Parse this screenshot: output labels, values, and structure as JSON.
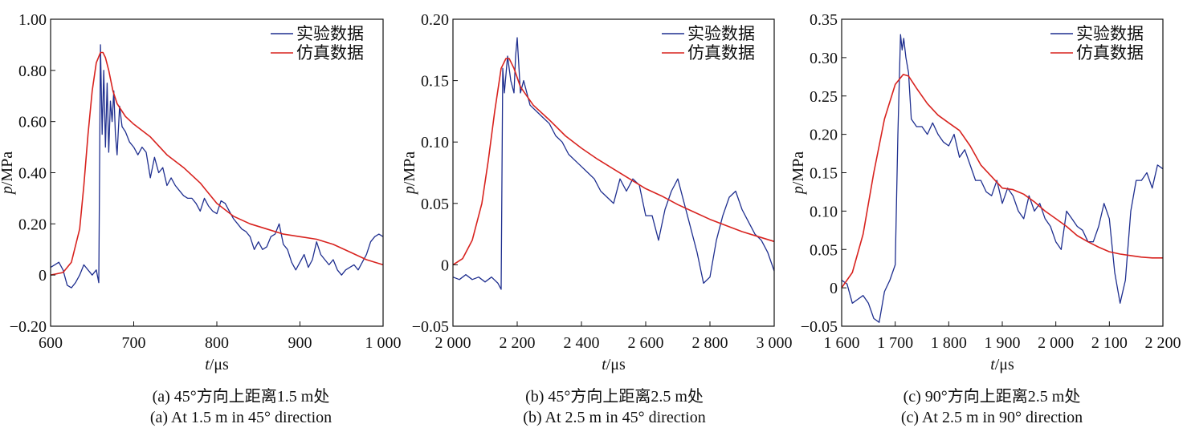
{
  "colors": {
    "experimental": "#1f2f8f",
    "simulated": "#d8231f",
    "axis": "#111111"
  },
  "chart_data": [
    {
      "type": "line",
      "caption_cn": "(a) 45°方向上距离1.5 m处",
      "caption_en": "(a) At 1.5 m in 45° direction",
      "xlabel_italic": "t",
      "xlabel_unit": "/μs",
      "ylabel_italic": "p",
      "ylabel_unit": "/MPa",
      "xlim": [
        600,
        1000
      ],
      "ylim": [
        -0.2,
        1.0
      ],
      "xticks": [
        600,
        700,
        800,
        900,
        1000
      ],
      "xtick_labels": [
        "600",
        "700",
        "800",
        "900",
        "1 000"
      ],
      "yticks": [
        -0.2,
        0,
        0.2,
        0.4,
        0.6,
        0.8,
        1.0
      ],
      "ytick_labels": [
        "−0.20",
        "0",
        "0.20",
        "0.40",
        "0.60",
        "0.80",
        "1.00"
      ],
      "grid": false,
      "legend_position": "top-right",
      "series": [
        {
          "name": "实验数据",
          "color": "#1f2f8f",
          "x": [
            600,
            605,
            610,
            615,
            620,
            625,
            630,
            635,
            640,
            645,
            650,
            655,
            658,
            660,
            662,
            664,
            666,
            668,
            670,
            672,
            674,
            676,
            678,
            680,
            683,
            686,
            690,
            695,
            700,
            705,
            710,
            715,
            720,
            725,
            730,
            735,
            740,
            745,
            750,
            755,
            760,
            765,
            770,
            775,
            780,
            785,
            790,
            795,
            800,
            805,
            810,
            815,
            820,
            825,
            830,
            835,
            840,
            845,
            850,
            855,
            860,
            865,
            870,
            875,
            880,
            885,
            890,
            895,
            900,
            905,
            910,
            915,
            920,
            925,
            930,
            935,
            940,
            945,
            950,
            955,
            960,
            965,
            970,
            975,
            980,
            985,
            990,
            995,
            1000
          ],
          "y": [
            0.03,
            0.04,
            0.05,
            0.02,
            -0.04,
            -0.05,
            -0.03,
            0.0,
            0.04,
            0.02,
            0.0,
            0.02,
            -0.03,
            0.9,
            0.55,
            0.8,
            0.5,
            0.75,
            0.48,
            0.68,
            0.6,
            0.72,
            0.55,
            0.47,
            0.66,
            0.58,
            0.56,
            0.52,
            0.5,
            0.47,
            0.5,
            0.48,
            0.38,
            0.46,
            0.4,
            0.42,
            0.35,
            0.38,
            0.35,
            0.33,
            0.31,
            0.3,
            0.3,
            0.28,
            0.25,
            0.3,
            0.27,
            0.25,
            0.24,
            0.29,
            0.28,
            0.25,
            0.22,
            0.2,
            0.18,
            0.17,
            0.15,
            0.1,
            0.13,
            0.1,
            0.11,
            0.15,
            0.16,
            0.2,
            0.12,
            0.1,
            0.05,
            0.02,
            0.05,
            0.08,
            0.03,
            0.06,
            0.13,
            0.08,
            0.06,
            0.04,
            0.06,
            0.02,
            0.0,
            0.02,
            0.03,
            0.04,
            0.02,
            0.05,
            0.08,
            0.13,
            0.15,
            0.16,
            0.15
          ]
        },
        {
          "name": "仿真数据",
          "color": "#d8231f",
          "x": [
            600,
            615,
            625,
            635,
            640,
            645,
            650,
            655,
            660,
            663,
            666,
            670,
            675,
            680,
            690,
            700,
            720,
            740,
            760,
            780,
            790,
            800,
            820,
            840,
            860,
            880,
            900,
            920,
            940,
            960,
            980,
            1000
          ],
          "y": [
            0.0,
            0.01,
            0.05,
            0.18,
            0.35,
            0.55,
            0.72,
            0.83,
            0.87,
            0.87,
            0.85,
            0.8,
            0.72,
            0.67,
            0.62,
            0.59,
            0.54,
            0.47,
            0.42,
            0.36,
            0.32,
            0.28,
            0.23,
            0.2,
            0.18,
            0.16,
            0.15,
            0.14,
            0.12,
            0.09,
            0.06,
            0.04
          ]
        }
      ]
    },
    {
      "type": "line",
      "caption_cn": "(b) 45°方向上距离2.5 m处",
      "caption_en": "(b) At 2.5 m in 45° direction",
      "xlabel_italic": "t",
      "xlabel_unit": "/μs",
      "ylabel_italic": "p",
      "ylabel_unit": "/MPa",
      "xlim": [
        2000,
        3000
      ],
      "ylim": [
        -0.05,
        0.2
      ],
      "xticks": [
        2000,
        2200,
        2400,
        2600,
        2800,
        3000
      ],
      "xtick_labels": [
        "2 000",
        "2 200",
        "2 400",
        "2 600",
        "2 800",
        "3 000"
      ],
      "yticks": [
        -0.05,
        0,
        0.05,
        0.1,
        0.15,
        0.2
      ],
      "ytick_labels": [
        "−0.05",
        "0",
        "0.05",
        "0.10",
        "0.15",
        "0.20"
      ],
      "grid": false,
      "legend_position": "top-right",
      "series": [
        {
          "name": "实验数据",
          "color": "#1f2f8f",
          "x": [
            2000,
            2020,
            2040,
            2060,
            2080,
            2100,
            2120,
            2140,
            2150,
            2155,
            2160,
            2170,
            2180,
            2190,
            2195,
            2200,
            2210,
            2220,
            2240,
            2260,
            2280,
            2300,
            2320,
            2340,
            2360,
            2380,
            2400,
            2420,
            2440,
            2460,
            2480,
            2500,
            2520,
            2540,
            2560,
            2580,
            2600,
            2620,
            2640,
            2660,
            2680,
            2700,
            2720,
            2740,
            2760,
            2780,
            2800,
            2820,
            2840,
            2860,
            2880,
            2900,
            2920,
            2940,
            2960,
            2980,
            3000
          ],
          "y": [
            -0.01,
            -0.012,
            -0.008,
            -0.012,
            -0.01,
            -0.014,
            -0.01,
            -0.015,
            -0.02,
            0.16,
            0.14,
            0.17,
            0.15,
            0.14,
            0.17,
            0.185,
            0.14,
            0.15,
            0.13,
            0.125,
            0.12,
            0.115,
            0.105,
            0.1,
            0.09,
            0.085,
            0.08,
            0.075,
            0.07,
            0.06,
            0.055,
            0.05,
            0.07,
            0.06,
            0.07,
            0.065,
            0.04,
            0.04,
            0.02,
            0.045,
            0.06,
            0.07,
            0.05,
            0.03,
            0.01,
            -0.015,
            -0.01,
            0.02,
            0.04,
            0.055,
            0.06,
            0.045,
            0.035,
            0.025,
            0.02,
            0.01,
            -0.005
          ]
        },
        {
          "name": "仿真数据",
          "color": "#d8231f",
          "x": [
            2000,
            2030,
            2060,
            2090,
            2110,
            2130,
            2150,
            2165,
            2175,
            2190,
            2210,
            2250,
            2300,
            2350,
            2400,
            2450,
            2500,
            2550,
            2600,
            2650,
            2700,
            2750,
            2800,
            2850,
            2900,
            2950,
            3000
          ],
          "y": [
            0.0,
            0.005,
            0.02,
            0.05,
            0.085,
            0.125,
            0.16,
            0.168,
            0.168,
            0.16,
            0.145,
            0.13,
            0.118,
            0.105,
            0.095,
            0.086,
            0.078,
            0.07,
            0.062,
            0.056,
            0.049,
            0.043,
            0.037,
            0.032,
            0.027,
            0.023,
            0.019
          ]
        }
      ]
    },
    {
      "type": "line",
      "caption_cn": "(c) 90°方向上距离2.5 m处",
      "caption_en": "(c) At 2.5 m in 90° direction",
      "xlabel_italic": "t",
      "xlabel_unit": "/μs",
      "ylabel_italic": "p",
      "ylabel_unit": "/MPa",
      "xlim": [
        1600,
        2200
      ],
      "ylim": [
        -0.05,
        0.35
      ],
      "xticks": [
        1600,
        1700,
        1800,
        1900,
        2000,
        2100,
        2200
      ],
      "xtick_labels": [
        "1 600",
        "1 700",
        "1 800",
        "1 900",
        "2 000",
        "2 100",
        "2 200"
      ],
      "yticks": [
        -0.05,
        0,
        0.05,
        0.1,
        0.15,
        0.2,
        0.25,
        0.3,
        0.35
      ],
      "ytick_labels": [
        "−0.05",
        "0",
        "0.05",
        "0.10",
        "0.15",
        "0.20",
        "0.25",
        "0.30",
        "0.35"
      ],
      "grid": false,
      "legend_position": "top-right",
      "series": [
        {
          "name": "实验数据",
          "color": "#1f2f8f",
          "x": [
            1600,
            1610,
            1620,
            1630,
            1640,
            1650,
            1660,
            1670,
            1680,
            1690,
            1700,
            1705,
            1710,
            1713,
            1716,
            1720,
            1725,
            1730,
            1740,
            1750,
            1760,
            1770,
            1780,
            1790,
            1800,
            1810,
            1820,
            1830,
            1840,
            1850,
            1860,
            1870,
            1880,
            1890,
            1900,
            1910,
            1920,
            1930,
            1940,
            1950,
            1960,
            1970,
            1980,
            1990,
            2000,
            2010,
            2020,
            2030,
            2040,
            2050,
            2060,
            2070,
            2080,
            2090,
            2100,
            2110,
            2120,
            2130,
            2140,
            2150,
            2160,
            2170,
            2180,
            2190,
            2200
          ],
          "y": [
            0.01,
            0.005,
            -0.02,
            -0.015,
            -0.01,
            -0.02,
            -0.04,
            -0.045,
            -0.005,
            0.01,
            0.03,
            0.2,
            0.33,
            0.31,
            0.325,
            0.3,
            0.28,
            0.22,
            0.21,
            0.21,
            0.2,
            0.215,
            0.2,
            0.19,
            0.185,
            0.2,
            0.17,
            0.18,
            0.16,
            0.14,
            0.14,
            0.125,
            0.12,
            0.14,
            0.11,
            0.13,
            0.12,
            0.1,
            0.09,
            0.12,
            0.1,
            0.11,
            0.09,
            0.08,
            0.06,
            0.05,
            0.1,
            0.09,
            0.08,
            0.075,
            0.06,
            0.06,
            0.08,
            0.11,
            0.09,
            0.02,
            -0.02,
            0.01,
            0.1,
            0.14,
            0.14,
            0.15,
            0.13,
            0.16,
            0.155
          ]
        },
        {
          "name": "仿真数据",
          "color": "#d8231f",
          "x": [
            1600,
            1620,
            1640,
            1660,
            1680,
            1700,
            1715,
            1725,
            1740,
            1760,
            1780,
            1800,
            1820,
            1840,
            1860,
            1880,
            1900,
            1920,
            1940,
            1960,
            1980,
            2000,
            2020,
            2040,
            2060,
            2080,
            2100,
            2120,
            2140,
            2160,
            2180,
            2200
          ],
          "y": [
            0.0,
            0.02,
            0.07,
            0.15,
            0.22,
            0.265,
            0.278,
            0.276,
            0.26,
            0.24,
            0.225,
            0.215,
            0.205,
            0.185,
            0.16,
            0.145,
            0.13,
            0.128,
            0.122,
            0.112,
            0.1,
            0.09,
            0.08,
            0.068,
            0.06,
            0.053,
            0.047,
            0.044,
            0.042,
            0.04,
            0.039,
            0.039
          ]
        }
      ]
    }
  ]
}
